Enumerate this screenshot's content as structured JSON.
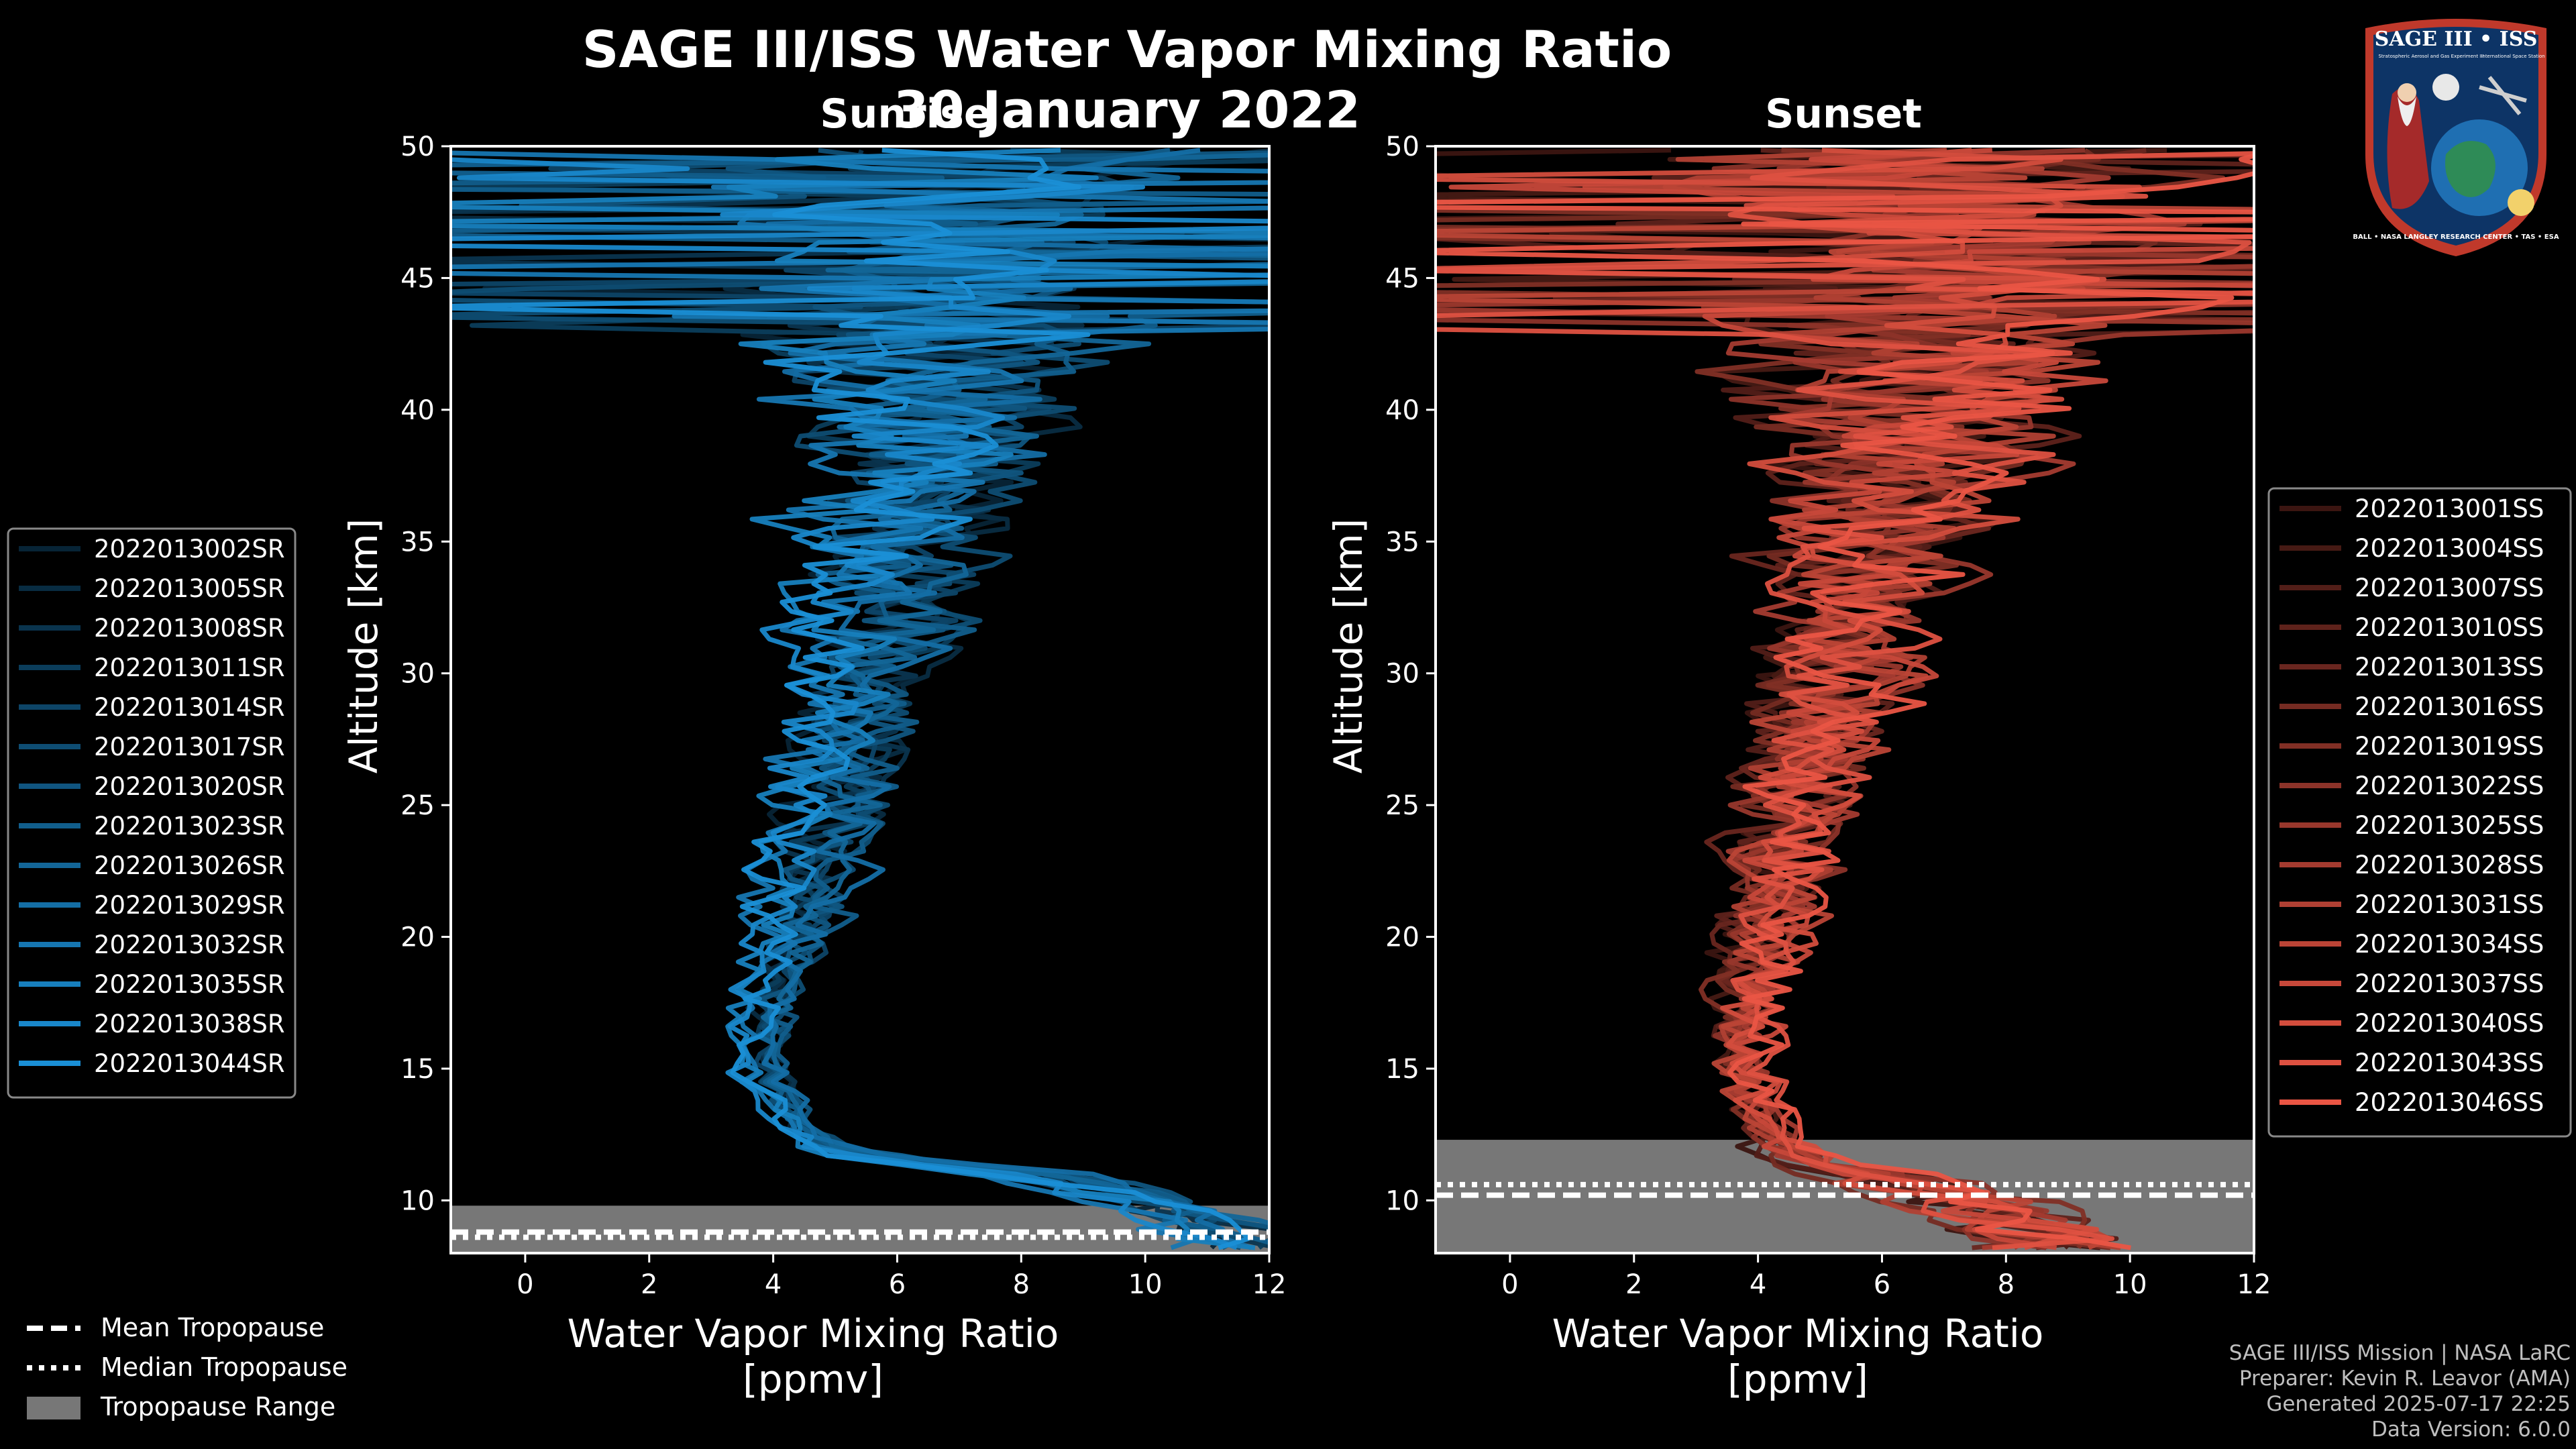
{
  "title": "SAGE III/ISS Water Vapor Mixing Ratio",
  "subtitle": "30 January 2022",
  "badge": {
    "top": "SAGE III • ISS",
    "line1": "Stratospheric Aerosol and Gas Experiment III",
    "line2": "International Space Station",
    "ring": "BALL • NASA LANGLEY RESEARCH CENTER • TAS • ESA"
  },
  "credits": {
    "line1": "SAGE III/ISS Mission | NASA LaRC",
    "line2": "Preparer: Kevin R. Leavor (AMA)",
    "line3": "Generated 2025-07-17 22:25",
    "line4": "Data Version: 6.0.0"
  },
  "bottom_legend": {
    "mean": "Mean Tropopause",
    "median": "Median Tropopause",
    "range": "Tropopause Range"
  },
  "colors": {
    "sunrise": "#1a8fd6",
    "sunset": "#ea5544",
    "tropopause_range": "#777777"
  },
  "chart_data": [
    {
      "type": "line",
      "panel_title": "Sunrise",
      "xlabel": "Water Vapor Mixing Ratio\n[ppmv]",
      "ylabel": "Altitude [km]",
      "xlim": [
        -1.2,
        12
      ],
      "ylim": [
        8,
        50
      ],
      "xticks": [
        0,
        2,
        4,
        6,
        8,
        10,
        12
      ],
      "yticks": [
        10,
        15,
        20,
        25,
        30,
        35,
        40,
        45,
        50
      ],
      "legend_position": "left",
      "series_names": [
        "2022013002SR",
        "2022013005SR",
        "2022013008SR",
        "2022013011SR",
        "2022013014SR",
        "2022013017SR",
        "2022013020SR",
        "2022013023SR",
        "2022013026SR",
        "2022013029SR",
        "2022013032SR",
        "2022013035SR",
        "2022013038SR",
        "2022013044SR"
      ],
      "tropopause": {
        "mean": 8.8,
        "median": 8.6,
        "range": [
          8,
          9.8
        ]
      },
      "profile_model": {
        "altitudes": [
          8.5,
          10,
          11,
          11.5,
          12,
          13,
          15,
          17,
          20,
          22,
          25,
          28,
          30,
          33,
          35,
          38,
          40,
          42,
          45,
          48,
          50
        ],
        "median_ppmv": [
          11.5,
          10,
          8,
          6,
          4.8,
          4.3,
          3.8,
          3.8,
          4.2,
          4.4,
          4.8,
          5.1,
          5.4,
          5.8,
          6.0,
          6.3,
          6.5,
          6.6,
          6.8,
          7.0,
          7.0
        ],
        "spread_ppmv": [
          1.5,
          1.2,
          1.0,
          0.8,
          0.5,
          0.4,
          0.5,
          0.6,
          0.8,
          1.0,
          1.2,
          1.4,
          1.6,
          2.0,
          2.4,
          3.0,
          3.6,
          4.2,
          5.0,
          6.0,
          6.5
        ]
      }
    },
    {
      "type": "line",
      "panel_title": "Sunset",
      "xlabel": "Water Vapor Mixing Ratio\n[ppmv]",
      "ylabel": "Altitude [km]",
      "xlim": [
        -1.2,
        12
      ],
      "ylim": [
        8,
        50
      ],
      "xticks": [
        0,
        2,
        4,
        6,
        8,
        10,
        12
      ],
      "yticks": [
        10,
        15,
        20,
        25,
        30,
        35,
        40,
        45,
        50
      ],
      "legend_position": "right",
      "series_names": [
        "2022013001SS",
        "2022013004SS",
        "2022013007SS",
        "2022013010SS",
        "2022013013SS",
        "2022013016SS",
        "2022013019SS",
        "2022013022SS",
        "2022013025SS",
        "2022013028SS",
        "2022013031SS",
        "2022013034SS",
        "2022013037SS",
        "2022013040SS",
        "2022013043SS",
        "2022013046SS"
      ],
      "tropopause": {
        "mean": 10.2,
        "median": 10.6,
        "range": [
          8,
          12.3
        ]
      },
      "profile_model": {
        "altitudes": [
          8.5,
          10,
          11,
          11.5,
          12,
          13,
          15,
          17,
          20,
          22,
          25,
          28,
          30,
          33,
          35,
          38,
          40,
          42,
          45,
          48,
          50
        ],
        "median_ppmv": [
          9.0,
          7.5,
          6.0,
          5.2,
          4.6,
          4.2,
          3.8,
          4.0,
          4.3,
          4.6,
          4.8,
          5.2,
          5.5,
          5.9,
          6.2,
          6.5,
          6.7,
          6.8,
          7.0,
          7.2,
          7.3
        ],
        "spread_ppmv": [
          2.5,
          2.0,
          1.5,
          1.0,
          0.7,
          0.6,
          0.7,
          0.9,
          1.1,
          1.3,
          1.6,
          1.8,
          2.0,
          2.4,
          2.8,
          3.4,
          4.0,
          4.6,
          5.4,
          6.0,
          6.5
        ]
      }
    }
  ]
}
